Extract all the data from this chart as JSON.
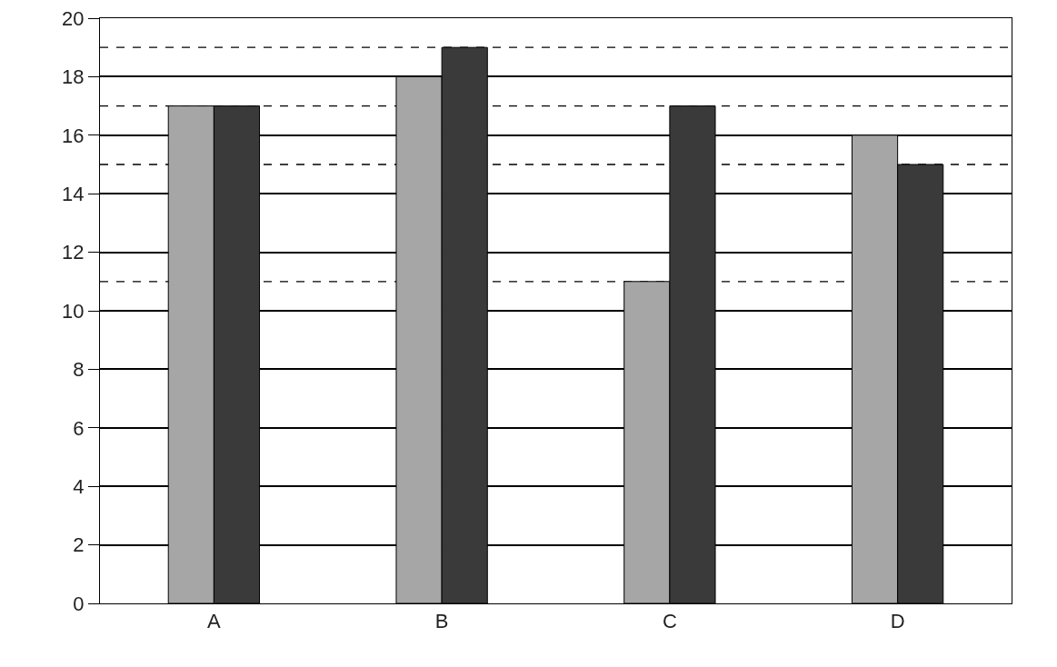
{
  "chart_data": {
    "type": "bar",
    "categories": [
      "A",
      "B",
      "C",
      "D"
    ],
    "series": [
      {
        "color": "#a6a6a6",
        "values": [
          17,
          18,
          11,
          16
        ]
      },
      {
        "color": "#3a3a3a",
        "values": [
          17,
          19,
          17,
          15
        ]
      }
    ],
    "ylim": [
      0,
      20
    ],
    "yticks": [
      0,
      2,
      4,
      6,
      8,
      10,
      12,
      14,
      16,
      18,
      20
    ],
    "grid": "y",
    "ref_lines": [
      {
        "axis": "y",
        "value": 19,
        "color": "#000000",
        "line_style": "dashed"
      },
      {
        "axis": "y",
        "value": 17,
        "color": "#000000",
        "line_style": "dashed"
      },
      {
        "axis": "y",
        "value": 15,
        "color": "#000000",
        "line_style": "dashed"
      },
      {
        "axis": "y",
        "value": 11,
        "color": "#000000",
        "line_style": "dashed"
      }
    ]
  }
}
